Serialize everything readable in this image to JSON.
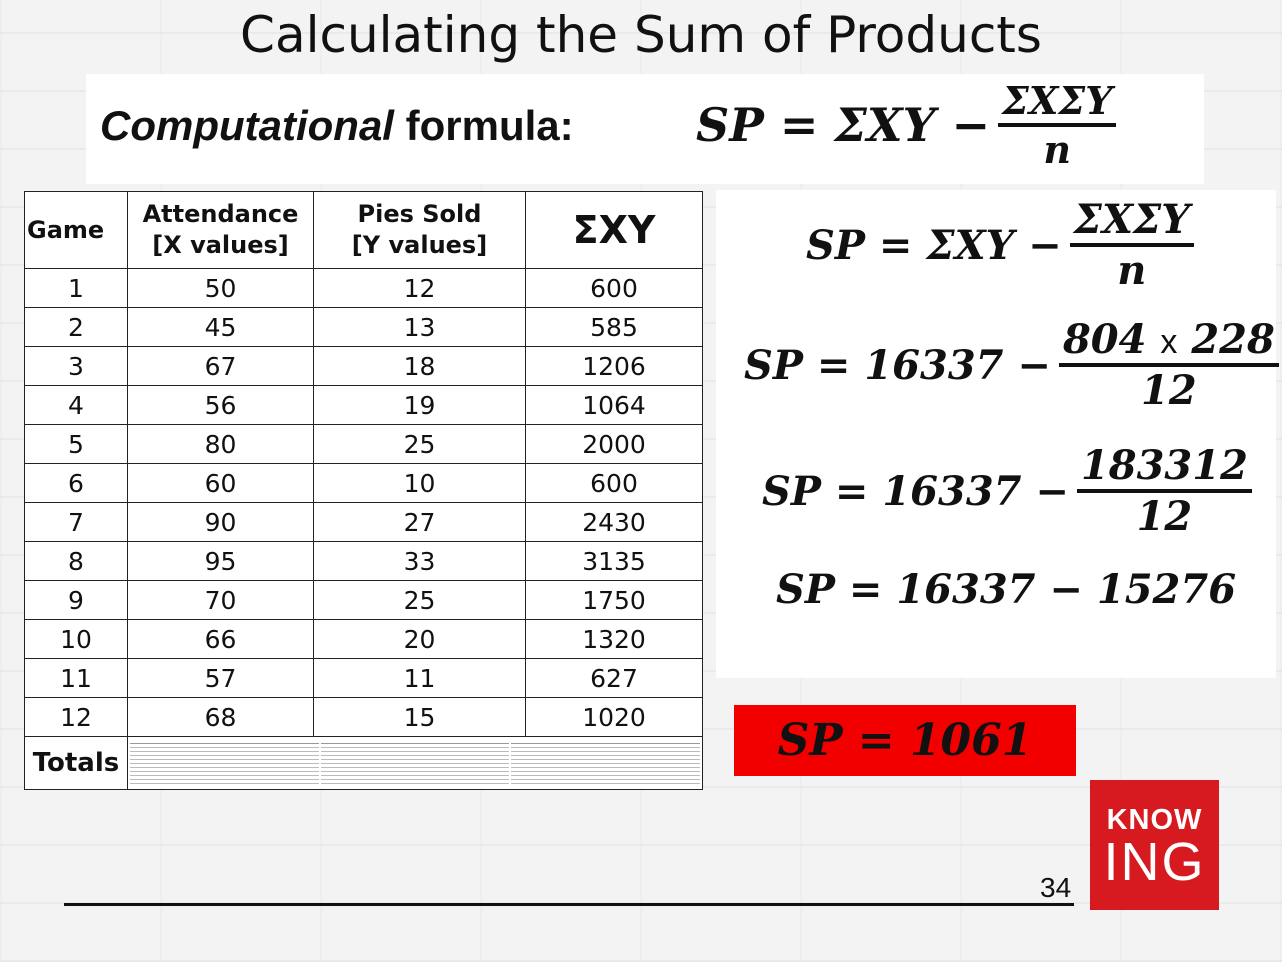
{
  "title": "Calculating the Sum of Products",
  "formula_banner": {
    "label_italic": "Computational",
    "label_rest": "formula:",
    "lhs": "SP = ΣXY −",
    "numerator": "ΣXΣY",
    "denominator": "n"
  },
  "table": {
    "headers": {
      "game": "Game",
      "attendance_l1": "Attendance",
      "attendance_l2": "[X values]",
      "pies_l1": "Pies Sold",
      "pies_l2": "[Y values]",
      "sxy": "ΣXY"
    },
    "rows": [
      {
        "game": "1",
        "x": "50",
        "y": "12",
        "xy": "600"
      },
      {
        "game": "2",
        "x": "45",
        "y": "13",
        "xy": "585"
      },
      {
        "game": "3",
        "x": "67",
        "y": "18",
        "xy": "1206"
      },
      {
        "game": "4",
        "x": "56",
        "y": "19",
        "xy": "1064"
      },
      {
        "game": "5",
        "x": "80",
        "y": "25",
        "xy": "2000"
      },
      {
        "game": "6",
        "x": "60",
        "y": "10",
        "xy": "600"
      },
      {
        "game": "7",
        "x": "90",
        "y": "27",
        "xy": "2430"
      },
      {
        "game": "8",
        "x": "95",
        "y": "33",
        "xy": "3135"
      },
      {
        "game": "9",
        "x": "70",
        "y": "25",
        "xy": "1750"
      },
      {
        "game": "10",
        "x": "66",
        "y": "20",
        "xy": "1320"
      },
      {
        "game": "11",
        "x": "57",
        "y": "11",
        "xy": "627"
      },
      {
        "game": "12",
        "x": "68",
        "y": "15",
        "xy": "1020"
      }
    ],
    "totals_label": "Totals"
  },
  "calc": {
    "line1": {
      "lhs": "SP = ΣXY −",
      "num": "ΣXΣY",
      "den": "n"
    },
    "line2": {
      "lhs": "SP = 16337 −",
      "num_a": "804",
      "num_x": "x",
      "num_b": "228",
      "den": "12"
    },
    "line3": {
      "lhs": "SP = 16337 −",
      "num": "183312",
      "den": "12"
    },
    "line4": "SP = 16337 − 15276"
  },
  "result": "SP = 1061",
  "logo": {
    "top": "KNOW",
    "bottom": "ING",
    "color": "#d71920"
  },
  "page_number": "34",
  "result_color": "#f20000"
}
